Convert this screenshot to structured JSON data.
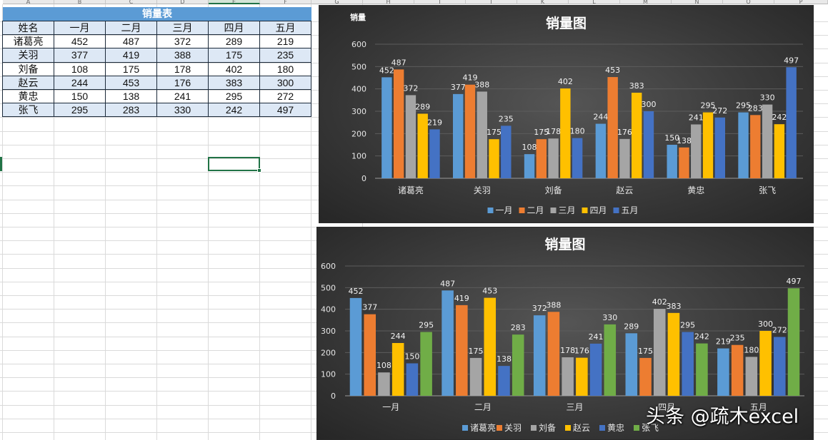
{
  "columns": [
    "A",
    "B",
    "C",
    "D",
    "E",
    "F",
    "G",
    "H",
    "I",
    "J",
    "K",
    "L",
    "M",
    "N",
    "O",
    "P"
  ],
  "table": {
    "title": "销量表",
    "headers": [
      "姓名",
      "一月",
      "二月",
      "三月",
      "四月",
      "五月"
    ],
    "rows": [
      {
        "name": "诸葛亮",
        "values": [
          452,
          487,
          372,
          289,
          219
        ]
      },
      {
        "name": "关羽",
        "values": [
          377,
          419,
          388,
          175,
          235
        ]
      },
      {
        "name": "刘备",
        "values": [
          108,
          175,
          178,
          402,
          180
        ]
      },
      {
        "name": "赵云",
        "values": [
          244,
          453,
          176,
          383,
          300
        ]
      },
      {
        "name": "黄忠",
        "values": [
          150,
          138,
          241,
          295,
          272
        ]
      },
      {
        "name": "张飞",
        "values": [
          295,
          283,
          330,
          242,
          497
        ]
      }
    ]
  },
  "watermark": "头条 @疏木excel",
  "chart_data": [
    {
      "type": "bar",
      "title": "销量图",
      "ylabel": "销量",
      "ylim": [
        0,
        600
      ],
      "yticks": [
        0,
        100,
        200,
        300,
        400,
        500,
        600
      ],
      "categories": [
        "诸葛亮",
        "关羽",
        "刘备",
        "赵云",
        "黄忠",
        "张飞"
      ],
      "legend_position": "bottom",
      "series": [
        {
          "name": "一月",
          "color": "#5b9bd5",
          "values": [
            452,
            377,
            108,
            244,
            150,
            295
          ]
        },
        {
          "name": "二月",
          "color": "#ed7d31",
          "values": [
            487,
            419,
            175,
            453,
            138,
            283
          ]
        },
        {
          "name": "三月",
          "color": "#a5a5a5",
          "values": [
            372,
            388,
            178,
            176,
            241,
            330
          ]
        },
        {
          "name": "四月",
          "color": "#ffc000",
          "values": [
            289,
            175,
            402,
            383,
            295,
            242
          ]
        },
        {
          "name": "五月",
          "color": "#4472c4",
          "values": [
            219,
            235,
            180,
            300,
            272,
            497
          ]
        }
      ]
    },
    {
      "type": "bar",
      "title": "销量图",
      "ylabel": "",
      "ylim": [
        0,
        600
      ],
      "yticks": [
        0,
        100,
        200,
        300,
        400,
        500,
        600
      ],
      "categories": [
        "一月",
        "二月",
        "三月",
        "四月",
        "五月"
      ],
      "legend_position": "bottom",
      "series": [
        {
          "name": "诸葛亮",
          "color": "#5b9bd5",
          "values": [
            452,
            487,
            372,
            289,
            219
          ]
        },
        {
          "name": "关羽",
          "color": "#ed7d31",
          "values": [
            377,
            419,
            388,
            175,
            235
          ]
        },
        {
          "name": "刘备",
          "color": "#a5a5a5",
          "values": [
            108,
            175,
            178,
            402,
            180
          ]
        },
        {
          "name": "赵云",
          "color": "#ffc000",
          "values": [
            244,
            453,
            176,
            383,
            300
          ]
        },
        {
          "name": "黄忠",
          "color": "#4472c4",
          "values": [
            150,
            138,
            241,
            295,
            272
          ]
        },
        {
          "name": "张飞",
          "color": "#70ad47",
          "values": [
            295,
            283,
            330,
            242,
            497
          ]
        }
      ]
    }
  ]
}
